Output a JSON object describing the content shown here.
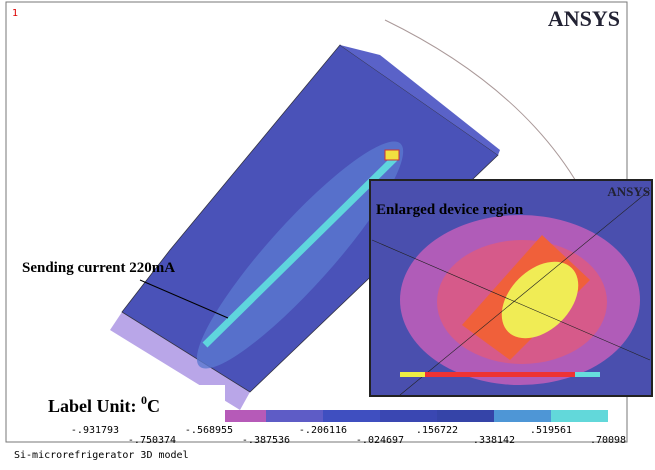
{
  "window_number": "1",
  "logo": "ANSYS",
  "annotation": "Sending current 220mA",
  "inset": {
    "title": "Enlarged device region",
    "logo": "ANSYS"
  },
  "label_unit": {
    "text": "Label Unit: ",
    "sup": "0",
    "unit": "C"
  },
  "legend": {
    "top_labels": [
      "-.931793",
      "-.568955",
      "-.206116",
      ".156722",
      ".519561"
    ],
    "bottom_labels": [
      "-.750374",
      "-.387536",
      "-.024697",
      ".338142",
      ".70098"
    ]
  },
  "caption": "Si-microrefrigerator 3D model"
}
